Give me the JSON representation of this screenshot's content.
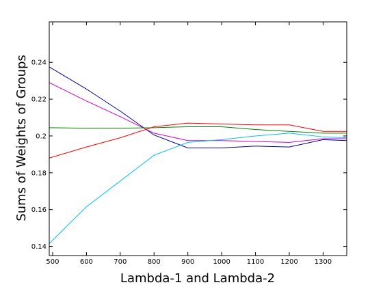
{
  "chart_data": {
    "type": "line",
    "title": "",
    "xlabel": "Lambda-1 and Lambda-2",
    "ylabel": "Sums of Weights of Groups",
    "xlim": [
      490,
      1370
    ],
    "ylim": [
      0.135,
      0.262
    ],
    "xticks": [
      500,
      600,
      700,
      800,
      900,
      1000,
      1100,
      1200,
      1300
    ],
    "xtick_labels": [
      "500",
      "600",
      "700",
      "800",
      "900",
      "1000",
      "1100",
      "1200",
      "1300"
    ],
    "yticks": [
      0.14,
      0.16,
      0.18,
      0.2,
      0.22,
      0.24
    ],
    "ytick_labels": [
      "0.14",
      "0.16",
      "0.18",
      "0.2",
      "0.22",
      "0.24"
    ],
    "grid": false,
    "legend": "none",
    "series": [
      {
        "color": "#00008b",
        "x": [
          490,
          600,
          700,
          800,
          900,
          1000,
          1100,
          1200,
          1300,
          1370
        ],
        "y": [
          0.2375,
          0.2255,
          0.2135,
          0.2005,
          0.1935,
          0.1935,
          0.1945,
          0.194,
          0.198,
          0.1975
        ]
      },
      {
        "color": "#cc00cc",
        "x": [
          490,
          600,
          700,
          800,
          900,
          1000,
          1100,
          1200,
          1300,
          1370
        ],
        "y": [
          0.229,
          0.219,
          0.2105,
          0.2015,
          0.1975,
          0.1975,
          0.197,
          0.1965,
          0.1985,
          0.1985
        ]
      },
      {
        "color": "#008000",
        "x": [
          490,
          600,
          700,
          800,
          900,
          1000,
          1100,
          1200,
          1300,
          1370
        ],
        "y": [
          0.2045,
          0.2042,
          0.2042,
          0.2045,
          0.205,
          0.205,
          0.2035,
          0.2025,
          0.2015,
          0.2015
        ]
      },
      {
        "color": "#ff0000",
        "x": [
          490,
          600,
          700,
          800,
          900,
          1000,
          1100,
          1200,
          1300,
          1370
        ],
        "y": [
          0.188,
          0.194,
          0.199,
          0.205,
          0.207,
          0.2065,
          0.206,
          0.206,
          0.2025,
          0.2025
        ]
      },
      {
        "color": "#00bfff",
        "x": [
          490,
          600,
          700,
          800,
          900,
          1000,
          1100,
          1200,
          1300,
          1370
        ],
        "y": [
          0.1415,
          0.1615,
          0.1755,
          0.1895,
          0.1965,
          0.198,
          0.2,
          0.2015,
          0.1995,
          0.199
        ]
      }
    ]
  }
}
